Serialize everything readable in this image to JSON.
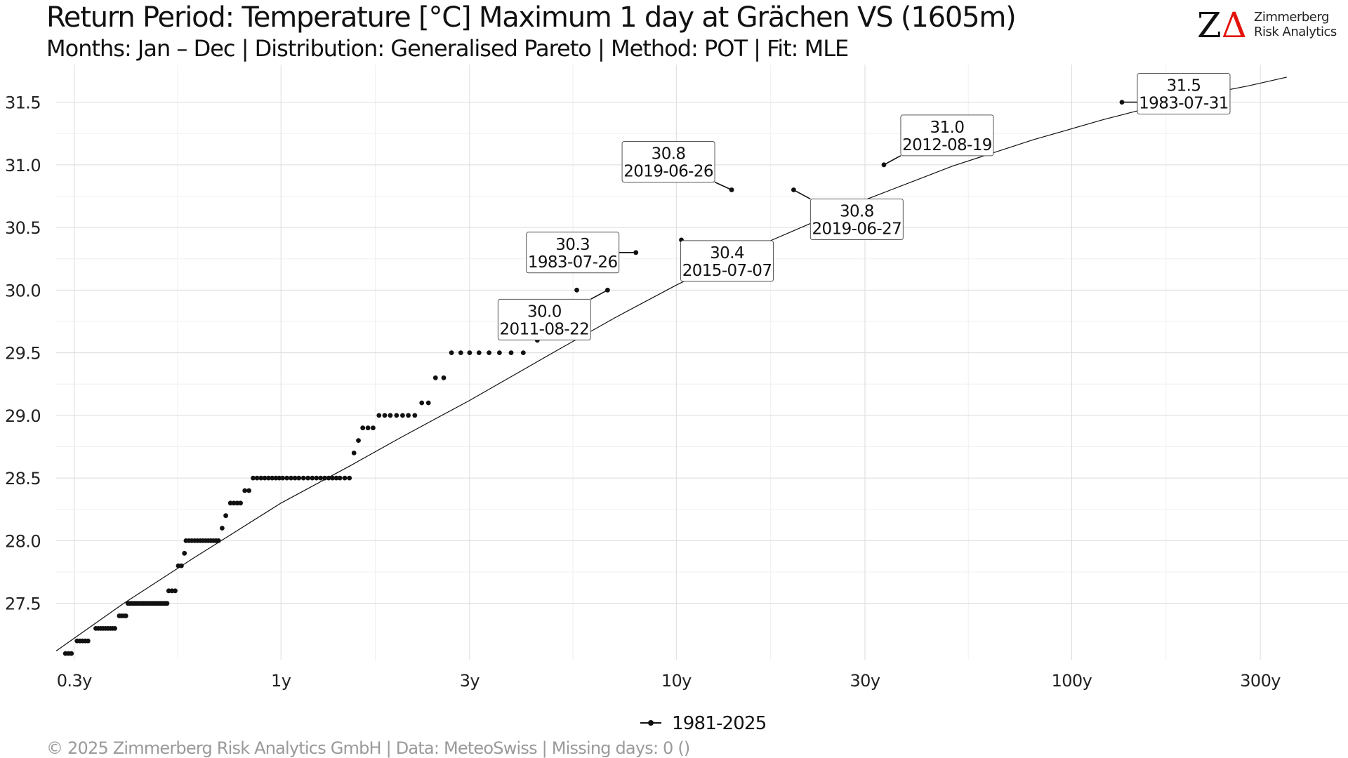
{
  "header": {
    "title": "Return Period: Temperature [°C] Maximum 1 day at Grächen  VS (1605m)",
    "subtitle": "Months: Jan – Dec | Distribution: Generalised Pareto | Method: POT | Fit: MLE"
  },
  "logo": {
    "mark_z": "Z",
    "mark_delta": "Δ",
    "line1": "Zimmerberg",
    "line2": "Risk Analytics",
    "accent_color": "#e3120b"
  },
  "legend": {
    "label": "1981-2025"
  },
  "footer": {
    "text": "©  2025 Zimmerberg Risk Analytics GmbH | Data: MeteoSwiss | Missing days: 0 ()"
  },
  "chart_data": {
    "type": "scatter",
    "x_scale": "log",
    "xlim": [
      0.27,
      500
    ],
    "ylim": [
      27.05,
      31.8
    ],
    "x_ticks": [
      0.3,
      1,
      3,
      10,
      30,
      100,
      300
    ],
    "x_tick_labels": [
      "0.3y",
      "1y",
      "3y",
      "10y",
      "30y",
      "100y",
      "300y"
    ],
    "y_ticks": [
      27.5,
      28.0,
      28.5,
      29.0,
      29.5,
      30.0,
      30.5,
      31.0,
      31.5
    ],
    "y_tick_labels": [
      "27.5",
      "28.0",
      "28.5",
      "29.0",
      "29.5",
      "30.0",
      "30.5",
      "31.0",
      "31.5"
    ],
    "grid": true,
    "fit_curve": {
      "x": [
        0.27,
        0.4,
        0.6,
        1,
        1.5,
        2,
        3,
        5,
        7,
        10,
        15,
        20,
        30,
        50,
        80,
        120,
        200,
        280,
        350
      ],
      "y": [
        27.12,
        27.5,
        27.86,
        28.3,
        28.6,
        28.82,
        29.12,
        29.52,
        29.78,
        30.04,
        30.31,
        30.48,
        30.72,
        30.99,
        31.2,
        31.36,
        31.54,
        31.63,
        31.7
      ]
    },
    "series": [
      {
        "name": "1981-2025",
        "points": [
          [
            0.285,
            27.1
          ],
          [
            0.29,
            27.1
          ],
          [
            0.295,
            27.1
          ],
          [
            0.305,
            27.2
          ],
          [
            0.31,
            27.2
          ],
          [
            0.315,
            27.2
          ],
          [
            0.32,
            27.2
          ],
          [
            0.325,
            27.2
          ],
          [
            0.34,
            27.3
          ],
          [
            0.345,
            27.3
          ],
          [
            0.35,
            27.3
          ],
          [
            0.355,
            27.3
          ],
          [
            0.36,
            27.3
          ],
          [
            0.365,
            27.3
          ],
          [
            0.37,
            27.3
          ],
          [
            0.375,
            27.3
          ],
          [
            0.38,
            27.3
          ],
          [
            0.39,
            27.4
          ],
          [
            0.395,
            27.4
          ],
          [
            0.4,
            27.4
          ],
          [
            0.405,
            27.4
          ],
          [
            0.41,
            27.5
          ],
          [
            0.415,
            27.5
          ],
          [
            0.42,
            27.5
          ],
          [
            0.425,
            27.5
          ],
          [
            0.43,
            27.5
          ],
          [
            0.435,
            27.5
          ],
          [
            0.44,
            27.5
          ],
          [
            0.445,
            27.5
          ],
          [
            0.45,
            27.5
          ],
          [
            0.455,
            27.5
          ],
          [
            0.46,
            27.5
          ],
          [
            0.465,
            27.5
          ],
          [
            0.47,
            27.5
          ],
          [
            0.475,
            27.5
          ],
          [
            0.48,
            27.5
          ],
          [
            0.485,
            27.5
          ],
          [
            0.49,
            27.5
          ],
          [
            0.495,
            27.5
          ],
          [
            0.5,
            27.5
          ],
          [
            0.505,
            27.5
          ],
          [
            0.51,
            27.5
          ],
          [
            0.515,
            27.5
          ],
          [
            0.52,
            27.6
          ],
          [
            0.53,
            27.6
          ],
          [
            0.54,
            27.6
          ],
          [
            0.55,
            27.8
          ],
          [
            0.56,
            27.8
          ],
          [
            0.57,
            27.9
          ],
          [
            0.575,
            28.0
          ],
          [
            0.585,
            28.0
          ],
          [
            0.595,
            28.0
          ],
          [
            0.605,
            28.0
          ],
          [
            0.615,
            28.0
          ],
          [
            0.625,
            28.0
          ],
          [
            0.635,
            28.0
          ],
          [
            0.645,
            28.0
          ],
          [
            0.655,
            28.0
          ],
          [
            0.665,
            28.0
          ],
          [
            0.675,
            28.0
          ],
          [
            0.685,
            28.0
          ],
          [
            0.695,
            28.0
          ],
          [
            0.71,
            28.1
          ],
          [
            0.725,
            28.2
          ],
          [
            0.745,
            28.3
          ],
          [
            0.76,
            28.3
          ],
          [
            0.775,
            28.3
          ],
          [
            0.79,
            28.3
          ],
          [
            0.81,
            28.4
          ],
          [
            0.83,
            28.4
          ],
          [
            0.85,
            28.5
          ],
          [
            0.87,
            28.5
          ],
          [
            0.89,
            28.5
          ],
          [
            0.91,
            28.5
          ],
          [
            0.93,
            28.5
          ],
          [
            0.95,
            28.5
          ],
          [
            0.97,
            28.5
          ],
          [
            0.99,
            28.5
          ],
          [
            1.01,
            28.5
          ],
          [
            1.035,
            28.5
          ],
          [
            1.06,
            28.5
          ],
          [
            1.085,
            28.5
          ],
          [
            1.11,
            28.5
          ],
          [
            1.14,
            28.5
          ],
          [
            1.17,
            28.5
          ],
          [
            1.2,
            28.5
          ],
          [
            1.23,
            28.5
          ],
          [
            1.26,
            28.5
          ],
          [
            1.29,
            28.5
          ],
          [
            1.32,
            28.5
          ],
          [
            1.35,
            28.5
          ],
          [
            1.38,
            28.5
          ],
          [
            1.41,
            28.5
          ],
          [
            1.45,
            28.5
          ],
          [
            1.49,
            28.5
          ],
          [
            1.53,
            28.7
          ],
          [
            1.57,
            28.8
          ],
          [
            1.61,
            28.9
          ],
          [
            1.66,
            28.9
          ],
          [
            1.71,
            28.9
          ],
          [
            1.77,
            29.0
          ],
          [
            1.83,
            29.0
          ],
          [
            1.89,
            29.0
          ],
          [
            1.96,
            29.0
          ],
          [
            2.03,
            29.0
          ],
          [
            2.1,
            29.0
          ],
          [
            2.18,
            29.0
          ],
          [
            2.27,
            29.1
          ],
          [
            2.36,
            29.1
          ],
          [
            2.46,
            29.3
          ],
          [
            2.58,
            29.3
          ],
          [
            2.7,
            29.5
          ],
          [
            2.85,
            29.5
          ],
          [
            3.0,
            29.5
          ],
          [
            3.17,
            29.5
          ],
          [
            3.36,
            29.5
          ],
          [
            3.57,
            29.5
          ],
          [
            3.82,
            29.5
          ],
          [
            4.1,
            29.5
          ],
          [
            4.45,
            29.6
          ],
          [
            5.6,
            30.0
          ],
          [
            6.7,
            30.0
          ],
          [
            7.9,
            30.3
          ],
          [
            10.3,
            30.4
          ],
          [
            13.8,
            30.8
          ],
          [
            19.8,
            30.8
          ],
          [
            33.5,
            31.0
          ],
          [
            134,
            31.5
          ]
        ]
      }
    ],
    "annotations": [
      {
        "value": "31.5",
        "date": "1983-07-31",
        "x": 134,
        "y": 31.5
      },
      {
        "value": "31.0",
        "date": "2012-08-19",
        "x": 33.5,
        "y": 31.0
      },
      {
        "value": "30.8",
        "date": "2019-06-26",
        "x": 13.8,
        "y": 30.8
      },
      {
        "value": "30.8",
        "date": "2019-06-27",
        "x": 19.8,
        "y": 30.8
      },
      {
        "value": "30.3",
        "date": "1983-07-26",
        "x": 7.9,
        "y": 30.3
      },
      {
        "value": "30.4",
        "date": "2015-07-07",
        "x": 10.3,
        "y": 30.4
      },
      {
        "value": "30.0",
        "date": "2011-08-22",
        "x": 6.7,
        "y": 30.0
      }
    ]
  }
}
